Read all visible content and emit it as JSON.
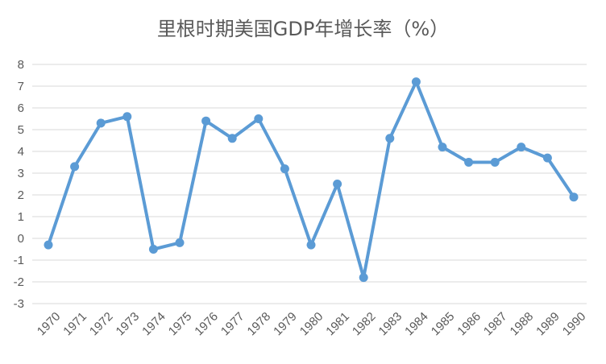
{
  "chart_data": {
    "type": "line",
    "title": "里根时期美国GDP年增长率（%）",
    "xlabel": "",
    "ylabel": "",
    "x": [
      "1970",
      "1971",
      "1972",
      "1973",
      "1974",
      "1975",
      "1976",
      "1977",
      "1978",
      "1979",
      "1980",
      "1981",
      "1982",
      "1983",
      "1984",
      "1985",
      "1986",
      "1987",
      "1988",
      "1989",
      "1990"
    ],
    "series": [
      {
        "values": [
          -0.3,
          3.3,
          5.3,
          5.6,
          -0.5,
          -0.2,
          5.4,
          4.6,
          5.5,
          3.2,
          -0.3,
          2.5,
          -1.8,
          4.6,
          7.2,
          4.2,
          3.5,
          3.5,
          4.2,
          3.7,
          1.9
        ],
        "color": "#5b9bd5"
      }
    ],
    "ylim": [
      -3,
      8
    ],
    "yticks": [
      -3,
      -2,
      -1,
      0,
      1,
      2,
      3,
      4,
      5,
      6,
      7,
      8
    ],
    "grid": true,
    "legend": "none"
  }
}
